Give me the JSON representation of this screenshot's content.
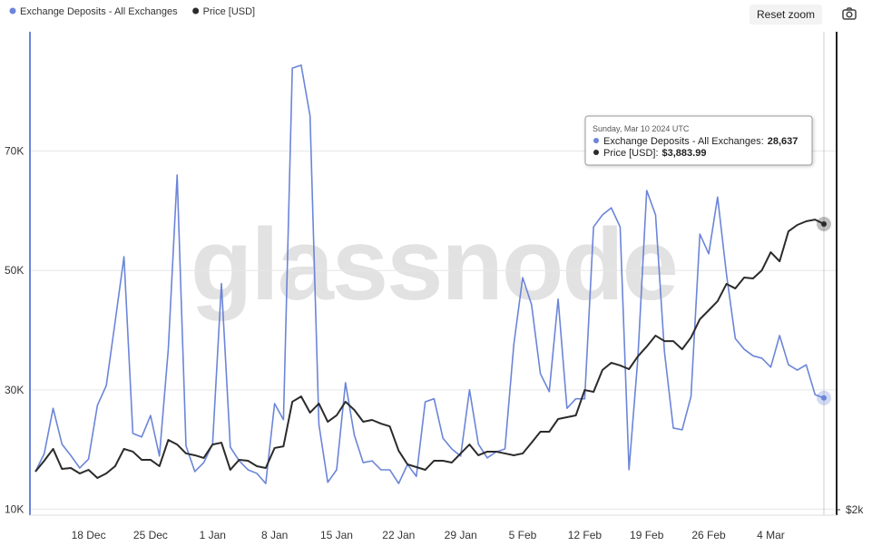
{
  "chart_data": {
    "type": "line",
    "categories": [
      null,
      null,
      null,
      null,
      null,
      null,
      "18 Dec",
      null,
      null,
      null,
      null,
      null,
      null,
      "25 Dec",
      null,
      null,
      null,
      null,
      null,
      null,
      "1 Jan",
      null,
      null,
      null,
      null,
      null,
      null,
      "8 Jan",
      null,
      null,
      null,
      null,
      null,
      null,
      "15 Jan",
      null,
      null,
      null,
      null,
      null,
      null,
      "22 Jan",
      null,
      null,
      null,
      null,
      null,
      null,
      "29 Jan",
      null,
      null,
      null,
      null,
      null,
      null,
      "5 Feb",
      null,
      null,
      null,
      null,
      null,
      null,
      "12 Feb",
      null,
      null,
      null,
      null,
      null,
      null,
      "19 Feb",
      null,
      null,
      null,
      null,
      null,
      null,
      "26 Feb",
      null,
      null,
      null,
      null,
      null,
      null,
      "4 Mar",
      null,
      null,
      null,
      null,
      null,
      null
    ],
    "series": [
      {
        "name": "Exchange Deposits - All Exchanges",
        "color": "#6b85d8",
        "values": [
          16300,
          19300,
          26900,
          20900,
          19000,
          16900,
          18400,
          27400,
          30700,
          41400,
          52300,
          22700,
          22100,
          25700,
          18900,
          36800,
          66000,
          20600,
          16300,
          17800,
          20900,
          47800,
          20400,
          18100,
          16600,
          16000,
          14300,
          27700,
          25000,
          83900,
          84400,
          75900,
          24200,
          14500,
          16600,
          31200,
          22400,
          17800,
          18100,
          16600,
          16600,
          14300,
          17500,
          15500,
          28000,
          28500,
          21900,
          20100,
          18900,
          30000,
          20900,
          18600,
          19600,
          20100,
          37600,
          48800,
          44300,
          32700,
          29700,
          45200,
          26900,
          28500,
          28500,
          57300,
          59300,
          60500,
          57300,
          16600,
          35300,
          63400,
          59300,
          36400,
          23600,
          23300,
          28900,
          56100,
          52800,
          62300,
          49400,
          38600,
          36800,
          35700,
          35300,
          33800,
          39100,
          34200,
          33300,
          34200,
          29200,
          28637
        ]
      },
      {
        "name": "Price [USD]",
        "color": "#2b2b2b",
        "axis": "y2",
        "values": [
          2251,
          2323,
          2401,
          2269,
          2275,
          2239,
          2263,
          2209,
          2239,
          2287,
          2401,
          2383,
          2329,
          2329,
          2287,
          2460,
          2430,
          2371,
          2359,
          2341,
          2430,
          2442,
          2263,
          2329,
          2323,
          2287,
          2275,
          2407,
          2418,
          2712,
          2747,
          2640,
          2700,
          2580,
          2622,
          2712,
          2658,
          2580,
          2592,
          2568,
          2550,
          2389,
          2299,
          2281,
          2263,
          2323,
          2323,
          2311,
          2371,
          2430,
          2359,
          2383,
          2383,
          2371,
          2359,
          2371,
          2442,
          2514,
          2514,
          2598,
          2610,
          2622,
          2789,
          2777,
          2921,
          2969,
          2951,
          2927,
          3011,
          3076,
          3148,
          3112,
          3112,
          3058,
          3136,
          3256,
          3315,
          3375,
          3489,
          3459,
          3531,
          3525,
          3579,
          3698,
          3638,
          3836,
          3878,
          3902,
          3913,
          3883.99
        ]
      }
    ],
    "ylim": [
      9000,
      90000
    ],
    "yticks": [
      {
        "value": 10000,
        "label": "10K"
      },
      {
        "value": 30000,
        "label": "30K"
      },
      {
        "value": 50000,
        "label": "50K"
      },
      {
        "value": 70000,
        "label": "70K"
      }
    ],
    "y2lim": [
      1964,
      5152
    ],
    "y2ticks": [
      {
        "value": 2000,
        "label": "$2k"
      }
    ],
    "grid": true,
    "legend": "top-left",
    "watermark": "glassnode",
    "reset_button": "Reset zoom",
    "tooltip": {
      "title": "Sunday, Mar 10 2024 UTC",
      "rows": [
        {
          "label": "Exchange Deposits - All Exchanges:",
          "value": "28,637"
        },
        {
          "label": "Price [USD]:",
          "value": "$3,883.99"
        }
      ]
    }
  }
}
